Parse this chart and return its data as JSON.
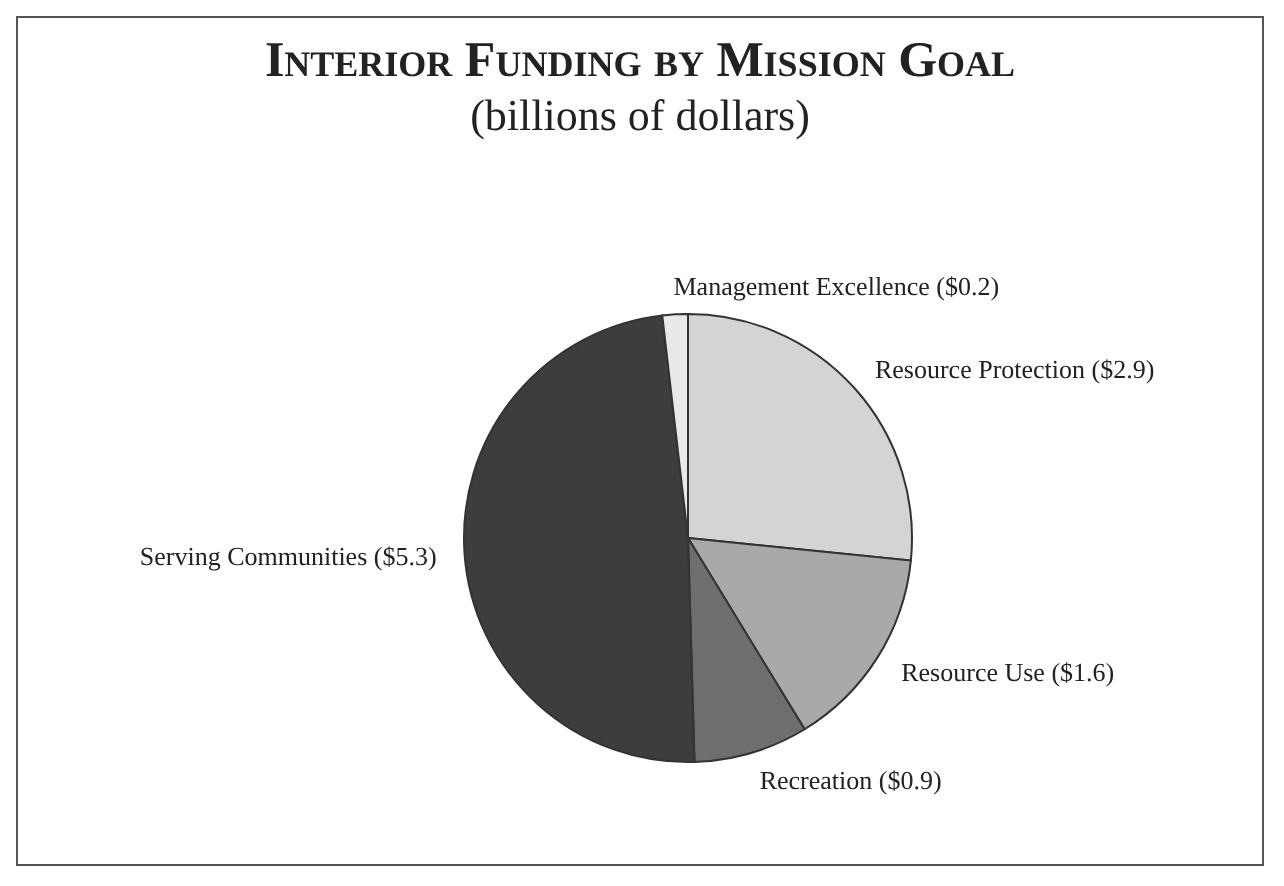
{
  "chart_data": {
    "type": "pie",
    "title": "Interior Funding by Mission Goal",
    "subtitle": "(billions of dollars)",
    "categories": [
      "Resource Protection",
      "Resource Use",
      "Recreation",
      "Serving Communities",
      "Management Excellence"
    ],
    "values": [
      2.9,
      1.6,
      0.9,
      5.3,
      0.2
    ],
    "value_labels": [
      "($2.9)",
      "($1.6)",
      "($0.9)",
      "($5.3)",
      "($0.2)"
    ],
    "colors": [
      "#d4d4d4",
      "#a9a9a9",
      "#6e6e6e",
      "#3d3d3d",
      "#e9e9e9"
    ],
    "legend": false
  }
}
